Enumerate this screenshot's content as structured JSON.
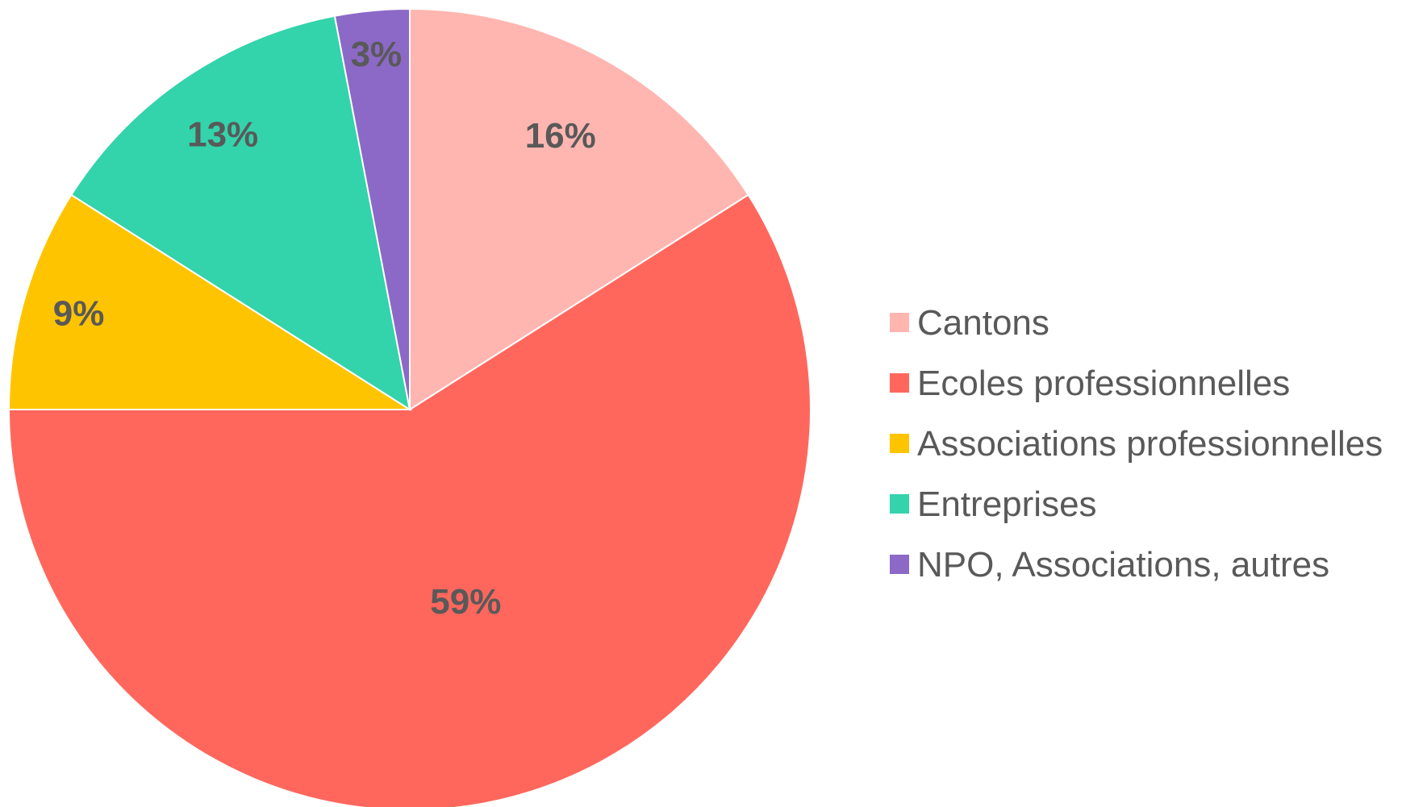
{
  "chart_data": {
    "type": "pie",
    "title": "",
    "start_angle_deg": 0,
    "direction": "clockwise",
    "legend_position": "right",
    "slices": [
      {
        "name": "Cantons",
        "value": 16,
        "label": "16%",
        "color": "#FFB6B1"
      },
      {
        "name": "Ecoles professionnelles",
        "value": 59,
        "label": "59%",
        "color": "#FF675D"
      },
      {
        "name": "Associations professionnelles",
        "value": 9,
        "label": "9%",
        "color": "#FFC400"
      },
      {
        "name": "Entreprises",
        "value": 13,
        "label": "13%",
        "color": "#33D3AB"
      },
      {
        "name": "NPO, Associations, autres",
        "value": 3,
        "label": "3%",
        "color": "#8C69C6"
      }
    ]
  }
}
